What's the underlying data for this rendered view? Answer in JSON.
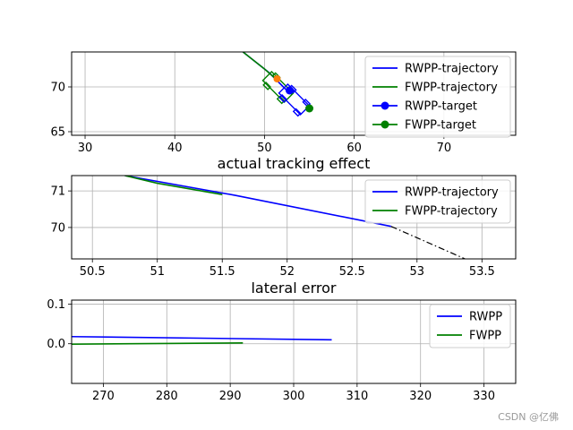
{
  "colors": {
    "rwpp": "#0000ff",
    "fwpp": "#008000",
    "orange": "#ff7f0e",
    "grid": "#b0b0b0",
    "dashdot": "#000000"
  },
  "watermark": "CSDN @亿佛",
  "chart_data": [
    {
      "type": "line",
      "title": "",
      "xlim": [
        28.5,
        78
      ],
      "ylim": [
        64.6,
        73.9
      ],
      "xticks": [
        30,
        40,
        50,
        60,
        70
      ],
      "yticks": [
        65,
        70
      ],
      "grid": true,
      "legend_position": "top-right",
      "series": [
        {
          "name": "RWPP-trajectory",
          "style": "line",
          "color": "rwpp",
          "points": [
            [
              47.6,
              73.9
            ],
            [
              50.5,
              71.6
            ],
            [
              52.6,
              69.5
            ]
          ]
        },
        {
          "name": "FWPP-trajectory",
          "style": "line",
          "color": "fwpp",
          "points": [
            [
              47.6,
              73.9
            ],
            [
              50.0,
              72.0
            ],
            [
              51.6,
              70.6
            ]
          ]
        },
        {
          "name": "RWPP-target",
          "style": "marker-line",
          "color": "rwpp",
          "points": [
            [
              52.8,
              69.6
            ]
          ]
        },
        {
          "name": "FWPP-target",
          "style": "marker-line",
          "color": "fwpp",
          "points": [
            [
              55.0,
              67.6
            ]
          ]
        }
      ],
      "vehicles": [
        {
          "color": "fwpp",
          "center": [
            51.5,
            70.0
          ],
          "angle_deg": 45
        },
        {
          "color": "rwpp",
          "center": [
            53.3,
            68.6
          ],
          "angle_deg": 45
        }
      ],
      "extra_markers": [
        {
          "color": "orange",
          "point": [
            51.4,
            70.9
          ]
        }
      ]
    },
    {
      "type": "line",
      "title": "actual tracking effect",
      "xlim": [
        50.34,
        53.76
      ],
      "ylim": [
        69.14,
        71.42
      ],
      "xticks": [
        50.5,
        51.0,
        51.5,
        52.0,
        52.5,
        53.0,
        53.5
      ],
      "yticks": [
        70,
        71
      ],
      "grid": true,
      "legend_position": "top-right",
      "series": [
        {
          "name": "RWPP-trajectory",
          "style": "line",
          "color": "rwpp",
          "points": [
            [
              50.75,
              71.42
            ],
            [
              51.6,
              70.88
            ],
            [
              52.8,
              70.03
            ]
          ]
        },
        {
          "name": "FWPP-trajectory",
          "style": "line",
          "color": "fwpp",
          "points": [
            [
              50.75,
              71.42
            ],
            [
              51.0,
              71.21
            ],
            [
              51.5,
              70.9
            ]
          ]
        }
      ],
      "reference_path": {
        "style": "dashdot",
        "color": "dashdot",
        "points": [
          [
            52.8,
            70.03
          ],
          [
            53.37,
            69.14
          ]
        ]
      }
    },
    {
      "type": "line",
      "title": "lateral error",
      "xlim": [
        265,
        335
      ],
      "ylim": [
        -0.1,
        0.11
      ],
      "xticks": [
        270,
        280,
        290,
        300,
        310,
        320,
        330
      ],
      "yticks": [
        0.0,
        0.1
      ],
      "ytick_labels": [
        "0.0",
        "0.1"
      ],
      "grid": true,
      "legend_position": "top-right",
      "series": [
        {
          "name": "RWPP",
          "style": "line",
          "color": "rwpp",
          "points": [
            [
              265,
              0.018
            ],
            [
              306,
              0.01
            ]
          ]
        },
        {
          "name": "FWPP",
          "style": "line",
          "color": "fwpp",
          "points": [
            [
              265,
              -0.001
            ],
            [
              292,
              0.002
            ]
          ]
        }
      ]
    }
  ]
}
